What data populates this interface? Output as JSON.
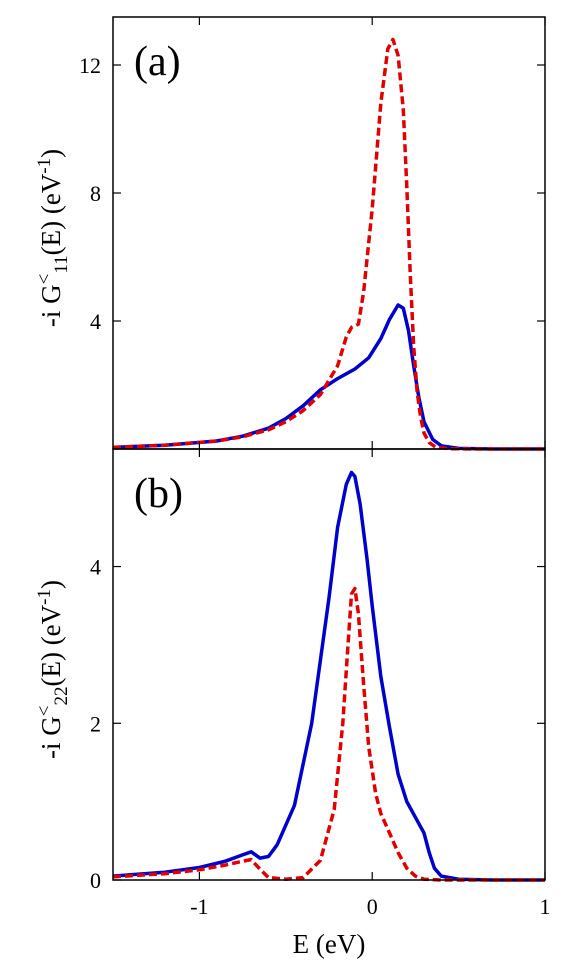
{
  "chart_data": [
    {
      "type": "line",
      "panel_label": "(a)",
      "ylabel": {
        "prefix": "-i G",
        "sup": "<",
        "sub": "11",
        "suffix": "(E)  (eV",
        "unit_sup": "-1",
        "close": ")"
      },
      "xlim": [
        -1.5,
        1.0
      ],
      "ylim": [
        0,
        13.5
      ],
      "yticks": [
        4,
        8,
        12
      ],
      "ytick_labels": [
        "4",
        "8",
        "12"
      ],
      "series": [
        {
          "color": "#0000cc",
          "style": "solid",
          "x": [
            -1.5,
            -1.2,
            -0.9,
            -0.75,
            -0.6,
            -0.5,
            -0.4,
            -0.3,
            -0.2,
            -0.1,
            -0.02,
            0.05,
            0.1,
            0.15,
            0.18,
            0.21,
            0.24,
            0.27,
            0.3,
            0.35,
            0.4,
            0.5,
            0.7,
            1.0
          ],
          "y": [
            0.05,
            0.12,
            0.25,
            0.4,
            0.65,
            0.95,
            1.35,
            1.85,
            2.2,
            2.5,
            2.85,
            3.45,
            4.05,
            4.5,
            4.4,
            3.7,
            2.6,
            1.6,
            0.85,
            0.3,
            0.1,
            0.02,
            0.0,
            0.0
          ]
        },
        {
          "color": "#e00000",
          "style": "dashed",
          "x": [
            -1.5,
            -1.2,
            -0.9,
            -0.75,
            -0.6,
            -0.5,
            -0.4,
            -0.3,
            -0.2,
            -0.15,
            -0.12,
            -0.08,
            -0.05,
            0.0,
            0.05,
            0.09,
            0.12,
            0.15,
            0.18,
            0.2,
            0.22,
            0.24,
            0.26,
            0.28,
            0.3,
            0.33,
            0.37,
            0.45,
            0.6,
            1.0
          ],
          "y": [
            0.05,
            0.12,
            0.25,
            0.38,
            0.6,
            0.85,
            1.2,
            1.7,
            2.6,
            3.5,
            3.8,
            3.9,
            4.9,
            7.5,
            10.8,
            12.5,
            12.8,
            12.3,
            10.6,
            8.2,
            5.5,
            3.2,
            1.8,
            1.0,
            0.5,
            0.2,
            0.05,
            0.01,
            0.0,
            0.0
          ]
        }
      ]
    },
    {
      "type": "line",
      "panel_label": "(b)",
      "ylabel": {
        "prefix": "-i G",
        "sup": "<",
        "sub": "22",
        "suffix": "(E)  (eV",
        "unit_sup": "-1",
        "close": ")"
      },
      "xlabel": "E (eV)",
      "xlim": [
        -1.5,
        1.0
      ],
      "ylim": [
        0,
        5.5
      ],
      "xticks": [
        -1,
        0,
        1
      ],
      "xtick_labels": [
        "-1",
        "0",
        "1"
      ],
      "yticks": [
        0,
        2,
        4
      ],
      "ytick_labels": [
        "0",
        "2",
        "4"
      ],
      "series": [
        {
          "color": "#0000cc",
          "style": "solid",
          "x": [
            -1.5,
            -1.2,
            -1.0,
            -0.85,
            -0.75,
            -0.7,
            -0.65,
            -0.6,
            -0.55,
            -0.45,
            -0.35,
            -0.25,
            -0.2,
            -0.15,
            -0.12,
            -0.1,
            -0.07,
            -0.03,
            0.0,
            0.05,
            0.1,
            0.15,
            0.2,
            0.25,
            0.3,
            0.33,
            0.36,
            0.4,
            0.5,
            0.7,
            1.0
          ],
          "y": [
            0.05,
            0.1,
            0.16,
            0.24,
            0.32,
            0.36,
            0.28,
            0.3,
            0.45,
            0.95,
            2.0,
            3.6,
            4.5,
            5.05,
            5.2,
            5.15,
            4.8,
            4.1,
            3.5,
            2.6,
            1.95,
            1.35,
            1.0,
            0.8,
            0.6,
            0.35,
            0.15,
            0.05,
            0.01,
            0.0,
            0.0
          ]
        },
        {
          "color": "#e00000",
          "style": "dashed",
          "x": [
            -1.5,
            -1.2,
            -1.0,
            -0.85,
            -0.75,
            -0.7,
            -0.65,
            -0.6,
            -0.5,
            -0.4,
            -0.3,
            -0.22,
            -0.17,
            -0.14,
            -0.12,
            -0.1,
            -0.08,
            -0.05,
            -0.02,
            0.02,
            0.05,
            0.1,
            0.15,
            0.2,
            0.25,
            0.3,
            0.4,
            0.6,
            1.0
          ],
          "y": [
            0.04,
            0.08,
            0.13,
            0.19,
            0.24,
            0.26,
            0.14,
            0.03,
            0.01,
            0.03,
            0.25,
            0.9,
            2.0,
            3.0,
            3.65,
            3.72,
            3.4,
            2.5,
            1.7,
            1.1,
            0.85,
            0.6,
            0.35,
            0.15,
            0.05,
            0.01,
            0.0,
            0.0,
            0.0
          ]
        }
      ]
    }
  ]
}
